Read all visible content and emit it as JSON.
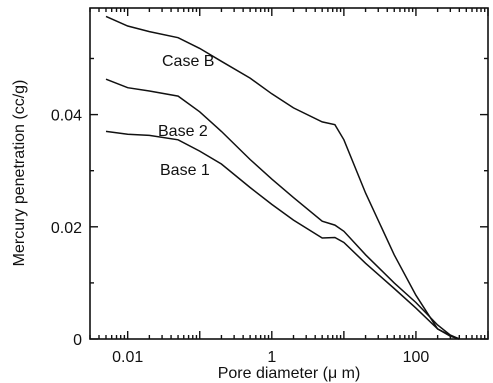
{
  "chart_data": {
    "type": "line",
    "title": "",
    "xlabel": "Pore diameter  (μ m)",
    "ylabel": "Mercury penetration  (cc/g)",
    "x_scale": "log",
    "xlim": [
      0.003,
      1000
    ],
    "ylim": [
      0,
      0.059
    ],
    "x_ticks": [
      0.01,
      1,
      100
    ],
    "x_tick_labels": [
      "0.01",
      "1",
      "100"
    ],
    "y_ticks": [
      0,
      0.02,
      0.04
    ],
    "y_tick_labels": [
      "0",
      "0.02",
      "0.04"
    ],
    "grid": false,
    "legend": "none",
    "series": [
      {
        "name": "Case B",
        "x": [
          0.005,
          0.01,
          0.02,
          0.05,
          0.1,
          0.2,
          0.5,
          1,
          2,
          5,
          7.5,
          10,
          20,
          50,
          100,
          200,
          300,
          400
        ],
        "y": [
          0.0575,
          0.0558,
          0.0548,
          0.0537,
          0.0518,
          0.0495,
          0.0465,
          0.0437,
          0.0412,
          0.0387,
          0.0382,
          0.0355,
          0.026,
          0.015,
          0.0078,
          0.0018,
          0.0006,
          0.0
        ]
      },
      {
        "name": "Base 2",
        "x": [
          0.005,
          0.01,
          0.02,
          0.05,
          0.1,
          0.2,
          0.5,
          1,
          2,
          5,
          7.5,
          10,
          20,
          50,
          100,
          200,
          300,
          400
        ],
        "y": [
          0.0463,
          0.0448,
          0.0442,
          0.0433,
          0.0405,
          0.037,
          0.032,
          0.0285,
          0.0252,
          0.021,
          0.0203,
          0.0192,
          0.015,
          0.01,
          0.0065,
          0.0025,
          0.0007,
          0.0
        ]
      },
      {
        "name": "Base 1",
        "x": [
          0.005,
          0.01,
          0.02,
          0.05,
          0.1,
          0.2,
          0.5,
          1,
          2,
          5,
          7.5,
          10,
          20,
          50,
          100,
          200,
          300,
          400
        ],
        "y": [
          0.037,
          0.0365,
          0.0363,
          0.0355,
          0.0335,
          0.0312,
          0.027,
          0.024,
          0.0212,
          0.018,
          0.0181,
          0.0172,
          0.0135,
          0.009,
          0.0055,
          0.0018,
          0.0005,
          0.0
        ]
      }
    ],
    "annotations": [
      "Case B",
      "Base 2",
      "Base 1"
    ]
  }
}
